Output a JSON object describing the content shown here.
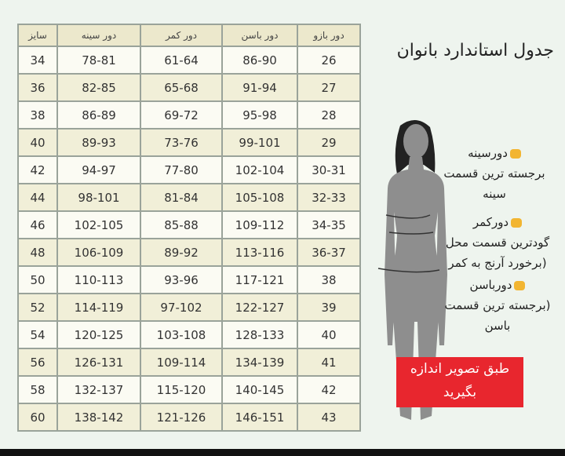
{
  "title": "جدول استاندارد بانوان",
  "table": {
    "headers": [
      "سایز",
      "دور سینه",
      "دور کمر",
      "دور باسن",
      "دور بازو"
    ],
    "rows": [
      [
        "34",
        "78-81",
        "61-64",
        "86-90",
        "26"
      ],
      [
        "36",
        "82-85",
        "65-68",
        "91-94",
        "27"
      ],
      [
        "38",
        "86-89",
        "69-72",
        "95-98",
        "28"
      ],
      [
        "40",
        "89-93",
        "73-76",
        "99-101",
        "29"
      ],
      [
        "42",
        "94-97",
        "77-80",
        "102-104",
        "30-31"
      ],
      [
        "44",
        "98-101",
        "81-84",
        "105-108",
        "32-33"
      ],
      [
        "46",
        "102-105",
        "85-88",
        "109-112",
        "34-35"
      ],
      [
        "48",
        "106-109",
        "89-92",
        "113-116",
        "36-37"
      ],
      [
        "50",
        "110-113",
        "93-96",
        "117-121",
        "38"
      ],
      [
        "52",
        "114-119",
        "97-102",
        "122-127",
        "39"
      ],
      [
        "54",
        "120-125",
        "103-108",
        "128-133",
        "40"
      ],
      [
        "56",
        "126-131",
        "109-114",
        "134-139",
        "41"
      ],
      [
        "58",
        "132-137",
        "115-120",
        "140-145",
        "42"
      ],
      [
        "60",
        "138-142",
        "121-126",
        "146-151",
        "43"
      ]
    ]
  },
  "labels": {
    "chest_title": "دورسینه",
    "chest_desc1": "برجسته ترین قسمت",
    "chest_desc2": "سینه",
    "waist_title": "دورکمر",
    "waist_desc1": "گودترین قسمت محل",
    "waist_desc2": "(برخورد آرنج به کمر",
    "hip_title": "دورباسن",
    "hip_desc1": "(برجسته ترین قسمت",
    "hip_desc2": "باسن"
  },
  "note": {
    "line1": "طبق تصویر اندازه",
    "line2": "بگیرید"
  },
  "colors": {
    "note_bg": "#e8262e",
    "hand": "#f2b531",
    "figure": "#8e8e8e"
  }
}
